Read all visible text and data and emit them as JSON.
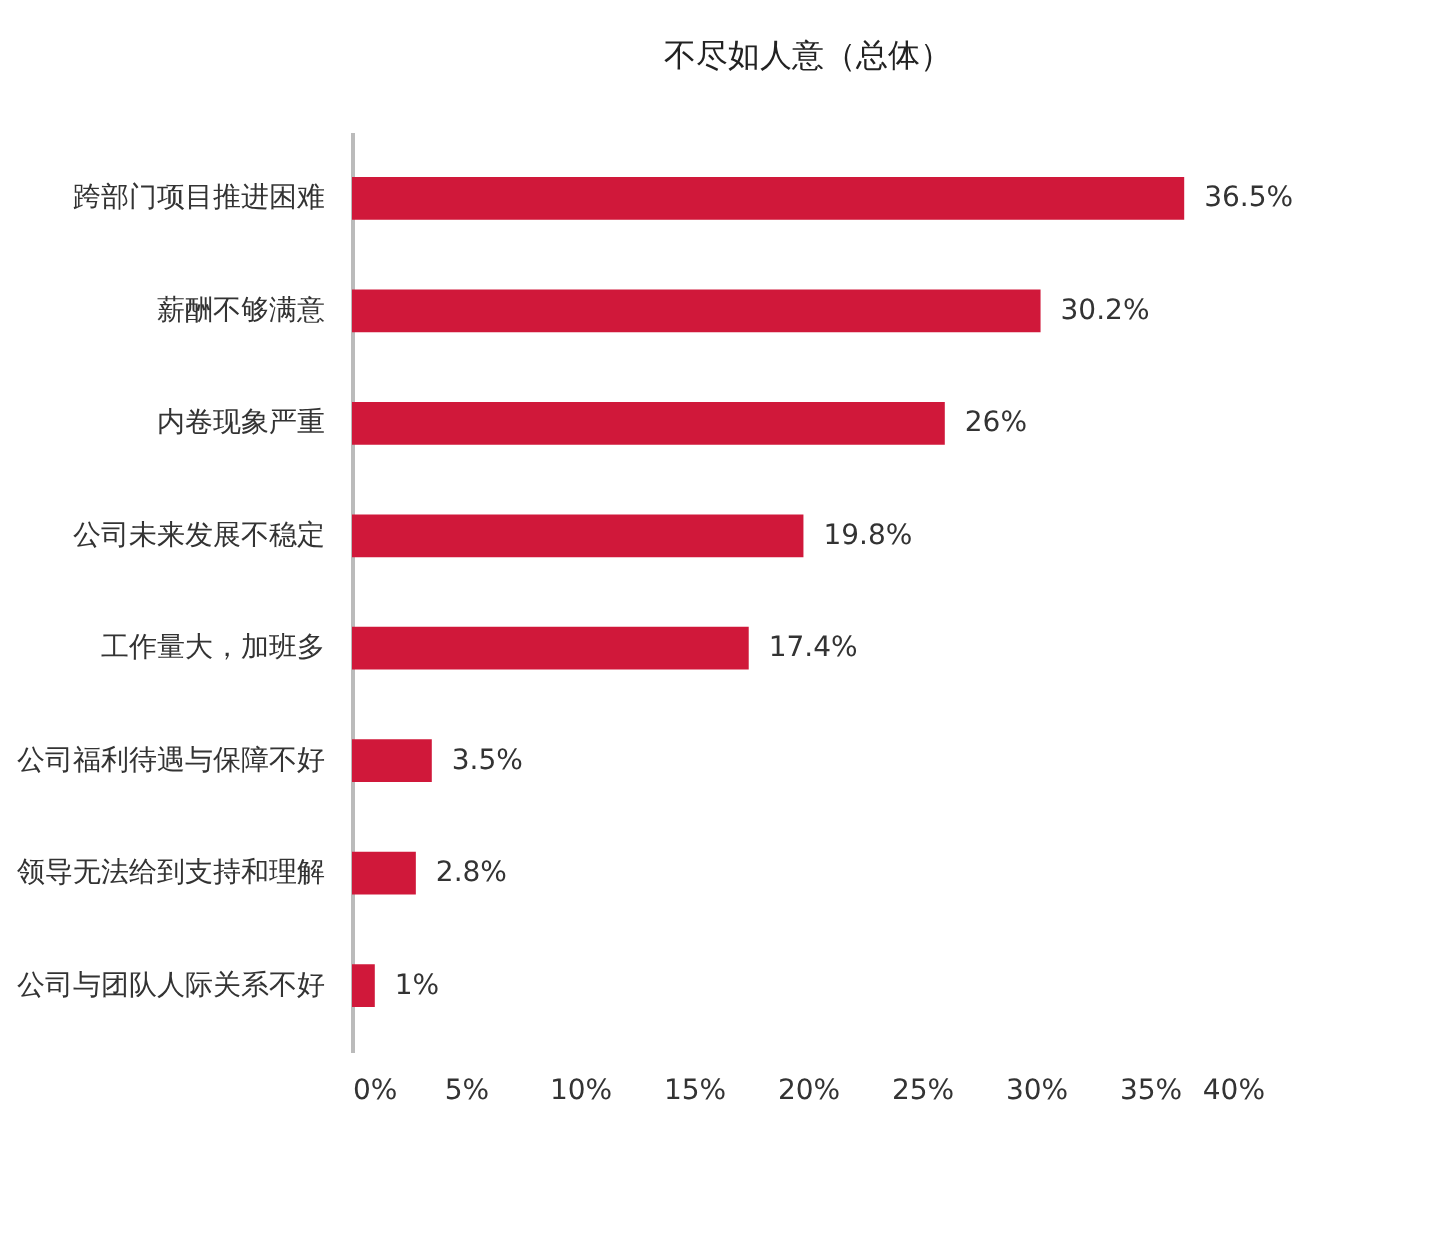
{
  "chart_data": {
    "type": "bar",
    "orientation": "horizontal",
    "title": "不尽如人意（总体）",
    "categories": [
      "跨部门项目推进困难",
      "薪酬不够满意",
      "内卷现象严重",
      "公司未来发展不稳定",
      "工作量大，加班多",
      "公司福利待遇与保障不好",
      "领导无法给到支持和理解",
      "公司与团队人际关系不好"
    ],
    "values": [
      36.5,
      30.2,
      26,
      19.8,
      17.4,
      3.5,
      2.8,
      1
    ],
    "value_labels": [
      "36.5%",
      "30.2%",
      "26%",
      "19.8%",
      "17.4%",
      "3.5%",
      "2.8%",
      "1%"
    ],
    "color": "#d0183a",
    "xlim": [
      0,
      40
    ],
    "xticks": [
      {
        "value": 0,
        "label": "0%"
      },
      {
        "value": 5,
        "label": "5%"
      },
      {
        "value": 10,
        "label": "10%"
      },
      {
        "value": 15,
        "label": "15%"
      },
      {
        "value": 20,
        "label": "20%"
      },
      {
        "value": 25,
        "label": "25%"
      },
      {
        "value": 30,
        "label": "30%"
      },
      {
        "value": 35,
        "label": "35%"
      },
      {
        "value": 40,
        "label": "40%"
      }
    ],
    "grid": false
  }
}
